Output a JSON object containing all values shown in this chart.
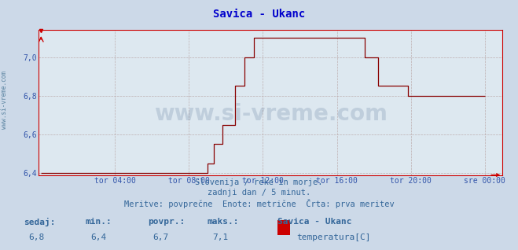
{
  "title": "Savica - Ukanc",
  "title_color": "#0000cc",
  "bg_color": "#ccd9e8",
  "plot_bg_color": "#dde8f0",
  "grid_color": "#bbaaaa",
  "line_color": "#880000",
  "axis_color": "#cc0000",
  "tick_color": "#3355aa",
  "label_color": "#336699",
  "ylim": [
    6.4,
    7.1
  ],
  "yticks": [
    6.4,
    6.6,
    6.8,
    7.0
  ],
  "xtick_labels": [
    "tor 04:00",
    "tor 08:00",
    "tor 12:00",
    "tor 16:00",
    "tor 20:00",
    "sre 00:00"
  ],
  "watermark": "www.si-vreme.com",
  "subtitle1": "Slovenija / reke in morje.",
  "subtitle2": "zadnji dan / 5 minut.",
  "subtitle3": "Meritve: povprečne  Enote: metrične  Črta: prva meritev",
  "footer_labels": [
    "sedaj:",
    "min.:",
    "povpr.:",
    "maks.:"
  ],
  "footer_values": [
    "6,8",
    "6,4",
    "6,7",
    "7,1"
  ],
  "footer_station": "Savica - Ukanc",
  "footer_measure": "temperatura[C]",
  "legend_color": "#cc0000",
  "side_label": "www.si-vreme.com"
}
